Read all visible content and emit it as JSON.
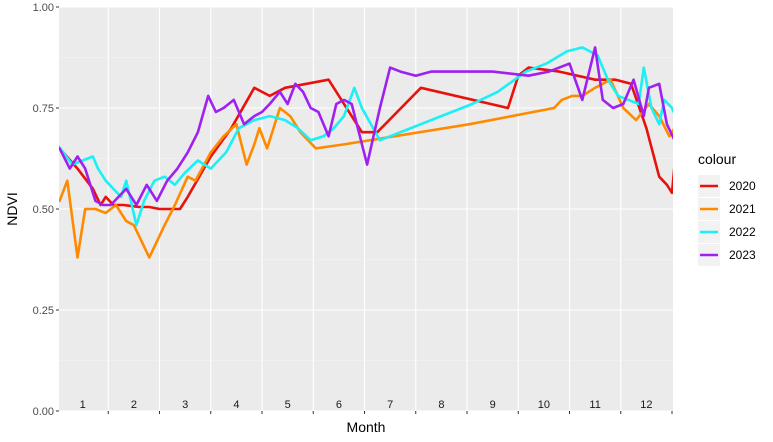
{
  "chart_data": {
    "type": "line",
    "xlabel": "Month",
    "ylabel": "NDVI",
    "ylim": [
      0,
      1
    ],
    "y_ticks": [
      "0.00",
      "0.25",
      "0.50",
      "0.75",
      "1.00"
    ],
    "y_tick_values": [
      0,
      0.25,
      0.5,
      0.75,
      1
    ],
    "month_labels": [
      "1",
      "2",
      "3",
      "4",
      "5",
      "6",
      "7",
      "8",
      "9",
      "10",
      "11",
      "12"
    ],
    "xlim": [
      0,
      12
    ],
    "grid": true,
    "legend_title": "colour",
    "legend_position": "right",
    "series": [
      {
        "name": "2020",
        "color": "#e8120c",
        "x": [
          0.05,
          0.4,
          0.7,
          0.85,
          0.95,
          1.1,
          1.3,
          1.6,
          1.8,
          2.0,
          2.4,
          2.55,
          3.0,
          3.4,
          3.85,
          4.15,
          4.45,
          5.3,
          5.95,
          6.25,
          7.1,
          8.8,
          9.0,
          9.2,
          9.8,
          10.5,
          10.9,
          11.2,
          11.5,
          11.75,
          11.9,
          12.0,
          12.05
        ],
        "y": [
          0.65,
          0.6,
          0.55,
          0.51,
          0.53,
          0.51,
          0.51,
          0.505,
          0.505,
          0.5,
          0.5,
          0.53,
          0.63,
          0.7,
          0.8,
          0.78,
          0.8,
          0.82,
          0.69,
          0.69,
          0.8,
          0.75,
          0.83,
          0.85,
          0.84,
          0.82,
          0.82,
          0.81,
          0.7,
          0.58,
          0.56,
          0.54,
          0.61
        ]
      },
      {
        "name": "2021",
        "color": "#ff8a00",
        "x": [
          0.05,
          0.2,
          0.4,
          0.55,
          0.75,
          0.95,
          1.15,
          1.35,
          1.5,
          1.8,
          2.1,
          2.3,
          2.55,
          2.7,
          3.0,
          3.25,
          3.5,
          3.7,
          3.85,
          3.95,
          4.1,
          4.35,
          4.55,
          4.75,
          5.05,
          5.6,
          8.05,
          9.7,
          9.85,
          10.05,
          10.25,
          10.5,
          10.8,
          11.05,
          11.3,
          11.55,
          11.75,
          11.95,
          12.15,
          12.25
        ],
        "y": [
          0.52,
          0.57,
          0.38,
          0.5,
          0.5,
          0.49,
          0.51,
          0.47,
          0.46,
          0.38,
          0.46,
          0.51,
          0.58,
          0.57,
          0.64,
          0.68,
          0.71,
          0.61,
          0.66,
          0.7,
          0.65,
          0.75,
          0.73,
          0.69,
          0.65,
          0.66,
          0.71,
          0.75,
          0.77,
          0.78,
          0.78,
          0.8,
          0.82,
          0.75,
          0.72,
          0.76,
          0.73,
          0.68,
          0.72,
          0.64
        ]
      },
      {
        "name": "2022",
        "color": "#1af0f5",
        "x": [
          0.0,
          0.3,
          0.5,
          0.7,
          0.8,
          0.95,
          1.1,
          1.25,
          1.35,
          1.55,
          1.7,
          1.9,
          2.1,
          2.3,
          2.5,
          2.75,
          3.0,
          3.3,
          3.55,
          3.85,
          4.15,
          4.45,
          4.7,
          4.95,
          5.2,
          5.4,
          5.6,
          5.8,
          5.95,
          6.3,
          8.1,
          8.6,
          9.15,
          9.55,
          9.95,
          10.25,
          10.55,
          10.75,
          10.95,
          11.15,
          11.35,
          11.45,
          11.6,
          11.75,
          11.85,
          12.0,
          12.1,
          12.15,
          12.2
        ],
        "y": [
          0.66,
          0.61,
          0.62,
          0.63,
          0.6,
          0.57,
          0.55,
          0.53,
          0.57,
          0.46,
          0.52,
          0.57,
          0.58,
          0.56,
          0.59,
          0.62,
          0.6,
          0.64,
          0.7,
          0.72,
          0.73,
          0.72,
          0.7,
          0.67,
          0.68,
          0.7,
          0.73,
          0.8,
          0.75,
          0.67,
          0.76,
          0.79,
          0.84,
          0.86,
          0.89,
          0.9,
          0.88,
          0.82,
          0.78,
          0.77,
          0.76,
          0.85,
          0.75,
          0.71,
          0.77,
          0.75,
          0.72,
          0.43,
          0.61
        ]
      },
      {
        "name": "2023",
        "color": "#a020f0",
        "x": [
          0.05,
          0.25,
          0.4,
          0.55,
          0.75,
          0.9,
          1.05,
          1.2,
          1.35,
          1.55,
          1.75,
          1.95,
          2.15,
          2.35,
          2.55,
          2.75,
          2.95,
          3.1,
          3.25,
          3.45,
          3.65,
          3.85,
          4.0,
          4.15,
          4.35,
          4.5,
          4.65,
          4.8,
          4.95,
          5.1,
          5.3,
          5.45,
          5.6,
          5.75,
          6.05,
          6.3,
          6.5,
          6.7,
          7.0,
          7.3,
          8.5,
          9.2,
          9.6,
          10.0,
          10.25,
          10.5,
          10.65,
          10.85,
          11.05,
          11.25,
          11.45,
          11.55,
          11.75,
          11.9,
          12.05,
          12.2
        ],
        "y": [
          0.65,
          0.6,
          0.63,
          0.6,
          0.52,
          0.51,
          0.51,
          0.53,
          0.55,
          0.51,
          0.56,
          0.52,
          0.57,
          0.6,
          0.64,
          0.69,
          0.78,
          0.74,
          0.75,
          0.77,
          0.71,
          0.73,
          0.74,
          0.76,
          0.79,
          0.76,
          0.81,
          0.79,
          0.75,
          0.74,
          0.68,
          0.76,
          0.77,
          0.76,
          0.61,
          0.75,
          0.85,
          0.84,
          0.83,
          0.84,
          0.84,
          0.83,
          0.84,
          0.86,
          0.77,
          0.9,
          0.77,
          0.75,
          0.76,
          0.82,
          0.73,
          0.8,
          0.81,
          0.71,
          0.67,
          0.62
        ]
      }
    ]
  }
}
